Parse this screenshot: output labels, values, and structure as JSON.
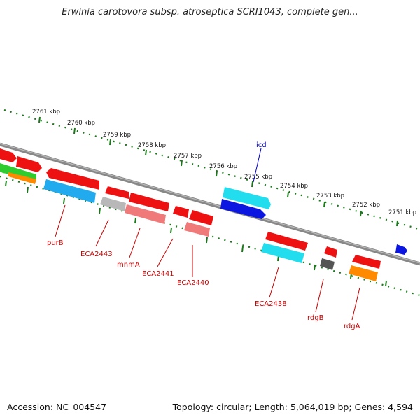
{
  "title": "Erwinia carotovora subsp. atroseptica SCRI1043, complete gen...",
  "footer": {
    "accession": "Accession: NC_004547",
    "info": "Topology: circular; Length: 5,064,019 bp; Genes: 4,594"
  },
  "scale_labels": [
    "2761 kbp",
    "2760 kbp",
    "2759 kbp",
    "2758 kbp",
    "2757 kbp",
    "2756 kbp",
    "2755 kbp",
    "2754 kbp",
    "2753 kbp",
    "2752 kbp",
    "2751 kbp"
  ],
  "gene_labels": {
    "icd": "icd",
    "purB": "purB",
    "ECA2443": "ECA2443",
    "mnmA": "mnmA",
    "ECA2441": "ECA2441",
    "ECA2440": "ECA2440",
    "ECA2438": "ECA2438",
    "rdgB": "rdgB",
    "rdgA": "rdgA"
  },
  "colors": {
    "red": "#ee1111",
    "cyan": "#22ddee",
    "blue": "#0b16e0",
    "gray": "#7a7a7a",
    "green": "#2ecc2e",
    "orange": "#ff8a00",
    "pink": "#f07a7a",
    "silver": "#b8b8b8",
    "dark": "#555555",
    "label_blue": "#0000cc",
    "label_red": "#cc0000",
    "tick": "#1a7a1a"
  }
}
